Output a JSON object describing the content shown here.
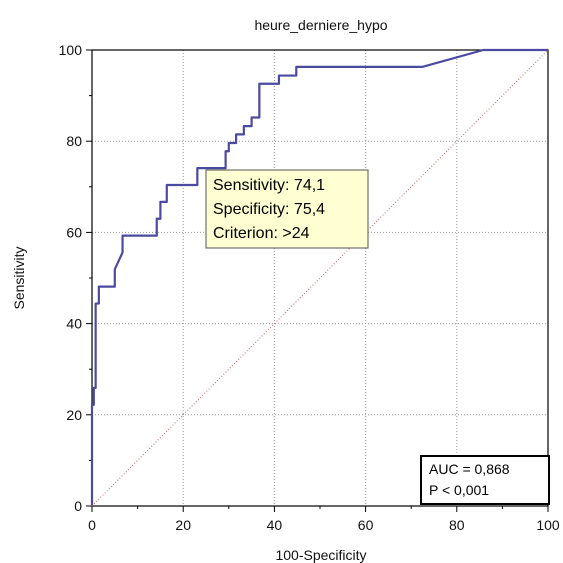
{
  "chart_data": {
    "type": "line",
    "title": "heure_derniere_hypo",
    "xlabel": "100-Specificity",
    "ylabel": "Sensitivity",
    "xlim": [
      0,
      100
    ],
    "ylim": [
      0,
      100
    ],
    "xticks": [
      0,
      20,
      40,
      60,
      80,
      100
    ],
    "yticks": [
      0,
      20,
      40,
      60,
      80,
      100
    ],
    "grid": true,
    "series": [
      {
        "color": "#4a4aa0",
        "x": [
          0,
          0,
          0.4,
          0.4,
          0.8,
          0.8,
          1.1,
          1.1,
          1.5,
          1.5,
          2.3,
          2.3,
          5.0,
          5.0,
          6.7,
          6.7,
          14.2,
          14.2,
          15.0,
          15.0,
          16.4,
          16.4,
          23.1,
          23.1,
          29.3,
          29.3,
          30.0,
          30.0,
          31.6,
          31.6,
          33.3,
          33.3,
          35.0,
          35.0,
          36.7,
          36.7,
          38.3,
          38.3,
          41.0,
          41.0,
          44.8,
          44.8,
          72.5,
          85.8,
          100
        ],
        "y": [
          0,
          22.2,
          22.2,
          25.9,
          25.9,
          44.4,
          44.4,
          44.4,
          44.4,
          48.1,
          48.1,
          48.1,
          48.1,
          51.9,
          55.6,
          59.3,
          59.3,
          63.0,
          63.0,
          66.7,
          66.7,
          70.4,
          70.4,
          74.1,
          74.1,
          77.8,
          77.8,
          79.6,
          79.6,
          81.5,
          81.5,
          83.3,
          83.3,
          85.2,
          85.2,
          92.6,
          92.6,
          92.6,
          92.6,
          94.4,
          94.4,
          96.3,
          96.3,
          100,
          100
        ]
      },
      {
        "color": "#c86464",
        "style": "dotted",
        "x": [
          0,
          100
        ],
        "y": [
          0,
          100
        ]
      }
    ],
    "annotations": {
      "tooltip": [
        "Sensitivity: 74,1",
        "Specificity: 75,4",
        "Criterion: >24"
      ],
      "stats": [
        "AUC = 0,868",
        "P < 0,001"
      ]
    }
  }
}
